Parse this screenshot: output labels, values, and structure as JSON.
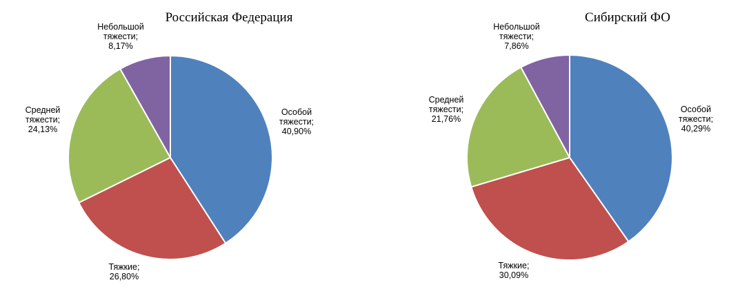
{
  "chart_data": [
    {
      "type": "pie",
      "title": "Российская Федерация",
      "start": "12 o'clock",
      "direction": "clockwise",
      "slices": [
        {
          "name": "Особой тяжести;",
          "value": 40.9,
          "label": "40,90%",
          "color": "#4F81BD"
        },
        {
          "name": "Тяжкие;",
          "value": 26.8,
          "label": "26,80%",
          "color": "#C0504D"
        },
        {
          "name": "Средней тяжести;",
          "value": 24.13,
          "label": "24,13%",
          "color": "#9BBB59"
        },
        {
          "name": "Небольшой тяжести;",
          "value": 8.17,
          "label": "8,17%",
          "color": "#8064A2"
        }
      ]
    },
    {
      "type": "pie",
      "title": "Сибирский ФО",
      "start": "12 o'clock",
      "direction": "clockwise",
      "slices": [
        {
          "name": "Особой тяжести;",
          "value": 40.29,
          "label": "40,29%",
          "color": "#4F81BD"
        },
        {
          "name": "Тяжкие;",
          "value": 30.09,
          "label": "30,09%",
          "color": "#C0504D"
        },
        {
          "name": "Средней тяжести;",
          "value": 21.76,
          "label": "21,76%",
          "color": "#9BBB59"
        },
        {
          "name": "Небольшой тяжести;",
          "value": 7.86,
          "label": "7,86%",
          "color": "#8064A2"
        }
      ]
    }
  ]
}
